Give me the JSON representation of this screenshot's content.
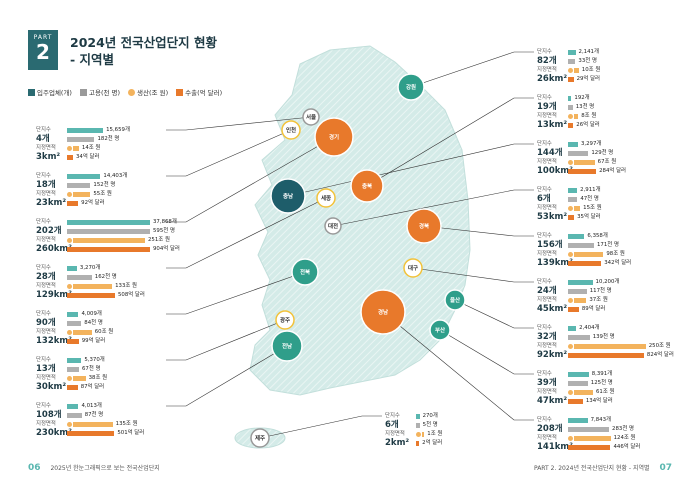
{
  "header": {
    "part_label": "PART",
    "part_number": "2",
    "title_line1": "2024년 전국산업단지 현황",
    "title_line2": "- 지역별"
  },
  "legend": [
    {
      "label": "입주업체(개)",
      "color": "#2a6a71",
      "shape": "square"
    },
    {
      "label": "고용(천 명)",
      "color": "#9a9a9a",
      "shape": "square"
    },
    {
      "label": "생산(조 원)",
      "color": "#f3b35d",
      "shape": "circle"
    },
    {
      "label": "수출(억 달러)",
      "color": "#e8792b",
      "shape": "square"
    }
  ],
  "labels": {
    "complex": "단지수",
    "area": "지정면적",
    "area_unit": "km²"
  },
  "chart_data": {
    "type": "table",
    "columns": [
      "단지수",
      "지정면적(km²)",
      "입주업체(개)",
      "고용(천 명)",
      "생산(조 원)",
      "수출(억 달러)"
    ],
    "regions": [
      {
        "name": "서울",
        "complexes": 4,
        "area": 3,
        "firms": "15,659개",
        "jobs": "182천 명",
        "prod": "14조 원",
        "exp": "34억 달러",
        "firms_n": 15659,
        "jobs_n": 182,
        "prod_n": 14,
        "exp_n": 34
      },
      {
        "name": "인천",
        "complexes": 18,
        "area": 23,
        "firms": "14,403개",
        "jobs": "152천 명",
        "prod": "55조 원",
        "exp": "92억 달러",
        "firms_n": 14403,
        "jobs_n": 152,
        "prod_n": 55,
        "exp_n": 92
      },
      {
        "name": "경기",
        "complexes": 202,
        "area": 260,
        "firms": "37,868개",
        "jobs": "595천 명",
        "prod": "251조 원",
        "exp": "904억 달러",
        "firms_n": 37868,
        "jobs_n": 595,
        "prod_n": 251,
        "exp_n": 904
      },
      {
        "name": "세종",
        "complexes": 28,
        "area": 129,
        "firms": "3,270개",
        "jobs": "162천 명",
        "prod": "133조 원",
        "exp": "508억 달러",
        "firms_n": 3270,
        "jobs_n": 162,
        "prod_n": 133,
        "exp_n": 508
      },
      {
        "name": "전북",
        "complexes": 90,
        "area": 132,
        "firms": "4,009개",
        "jobs": "84천 명",
        "prod": "60조 원",
        "exp": "99억 달러",
        "firms_n": 4009,
        "jobs_n": 84,
        "prod_n": 60,
        "exp_n": 99
      },
      {
        "name": "광주",
        "complexes": 13,
        "area": 30,
        "firms": "5,370개",
        "jobs": "67천 명",
        "prod": "38조 원",
        "exp": "87억 달러",
        "firms_n": 5370,
        "jobs_n": 67,
        "prod_n": 38,
        "exp_n": 87
      },
      {
        "name": "전남",
        "complexes": 108,
        "area": 230,
        "firms": "4,013개",
        "jobs": "87천 명",
        "prod": "135조 원",
        "exp": "501억 달러",
        "firms_n": 4013,
        "jobs_n": 87,
        "prod_n": 135,
        "exp_n": 501
      },
      {
        "name": "제주",
        "complexes": 6,
        "area": 2,
        "firms": "270개",
        "jobs": "5천 명",
        "prod": "1조 원",
        "exp": "2억 달러",
        "firms_n": 270,
        "jobs_n": 5,
        "prod_n": 1,
        "exp_n": 2
      },
      {
        "name": "강원",
        "complexes": 82,
        "area": 26,
        "firms": "2,141개",
        "jobs": "33천 명",
        "prod": "10조 원",
        "exp": "29억 달러",
        "firms_n": 2141,
        "jobs_n": 33,
        "prod_n": 10,
        "exp_n": 29
      },
      {
        "name": "충북",
        "complexes": 19,
        "area": 13,
        "firms": "192개",
        "jobs": "13천 명",
        "prod": "8조 원",
        "exp": "26억 달러",
        "firms_n": 192,
        "jobs_n": 13,
        "prod_n": 8,
        "exp_n": 26
      },
      {
        "name": "충남",
        "complexes": 144,
        "area": 100,
        "firms": "3,297개",
        "jobs": "129천 명",
        "prod": "67조 원",
        "exp": "284억 달러",
        "firms_n": 3297,
        "jobs_n": 129,
        "prod_n": 67,
        "exp_n": 284
      },
      {
        "name": "대전",
        "complexes": 6,
        "area": 53,
        "firms": "2,911개",
        "jobs": "47천 명",
        "prod": "15조 원",
        "exp": "35억 달러",
        "firms_n": 2911,
        "jobs_n": 47,
        "prod_n": 15,
        "exp_n": 35
      },
      {
        "name": "경북",
        "complexes": 156,
        "area": 139,
        "firms": "6,358개",
        "jobs": "171천 명",
        "prod": "98조 원",
        "exp": "342억 달러",
        "firms_n": 6358,
        "jobs_n": 171,
        "prod_n": 98,
        "exp_n": 342
      },
      {
        "name": "대구",
        "complexes": 24,
        "area": 45,
        "firms": "10,200개",
        "jobs": "117천 명",
        "prod": "37조 원",
        "exp": "89억 달러",
        "firms_n": 10200,
        "jobs_n": 117,
        "prod_n": 37,
        "exp_n": 89
      },
      {
        "name": "울산",
        "complexes": 32,
        "area": 92,
        "firms": "2,404개",
        "jobs": "139천 명",
        "prod": "250조 원",
        "exp": "824억 달러",
        "firms_n": 2404,
        "jobs_n": 139,
        "prod_n": 250,
        "exp_n": 824
      },
      {
        "name": "부산",
        "complexes": 39,
        "area": 47,
        "firms": "8,391개",
        "jobs": "125천 명",
        "prod": "61조 원",
        "exp": "134억 달러",
        "firms_n": 8391,
        "jobs_n": 125,
        "prod_n": 61,
        "exp_n": 134
      },
      {
        "name": "경남",
        "complexes": 208,
        "area": 141,
        "firms": "7,843개",
        "jobs": "283천 명",
        "prod": "124조 원",
        "exp": "446억 달러",
        "firms_n": 7843,
        "jobs_n": 283,
        "prod_n": 124,
        "exp_n": 446
      }
    ]
  },
  "colors": {
    "teal": "#5ab7b0",
    "dark_teal": "#1e5d6a",
    "orange": "#e8792b",
    "light_orange": "#f3b35d",
    "yellow": "#f2c23a",
    "green": "#2f9e8a",
    "map": "#cde6e3",
    "red": "#d9531e"
  },
  "footer": {
    "left_page": "06",
    "left_text": "2025년 한눈그래픽으로 보는 전국산업단지",
    "right_text": "PART 2. 2024년 전국산업단지 현황 - 지역별",
    "right_page": "07"
  }
}
